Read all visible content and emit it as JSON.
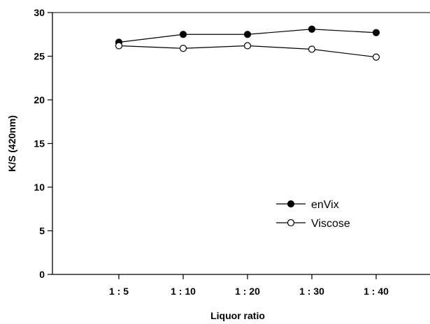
{
  "chart_data": {
    "type": "line",
    "xlabel": "Liquor ratio",
    "ylabel": "K/S (420nm)",
    "categories": [
      "1 : 5",
      "1 : 10",
      "1 : 20",
      "1 : 30",
      "1 : 40"
    ],
    "ylim": [
      0,
      30
    ],
    "yticks": [
      0,
      5,
      10,
      15,
      20,
      25,
      30
    ],
    "grid": false,
    "legend_position": "bottom-right",
    "series": [
      {
        "name": "enVix",
        "marker": "filled-circle",
        "values": [
          26.6,
          27.5,
          27.5,
          28.1,
          27.7
        ]
      },
      {
        "name": "Viscose",
        "marker": "open-circle",
        "values": [
          26.2,
          25.9,
          26.2,
          25.8,
          24.9
        ]
      }
    ]
  }
}
